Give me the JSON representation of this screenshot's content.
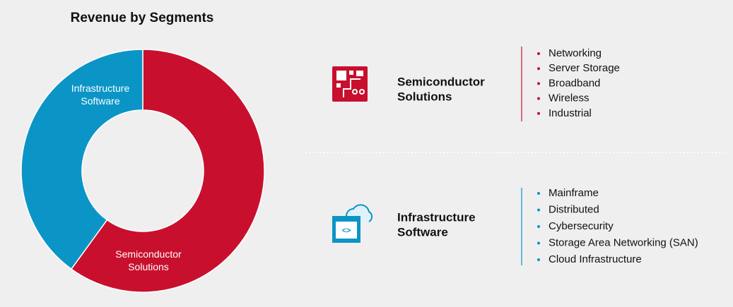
{
  "chart_data": {
    "type": "donut",
    "title": "Revenue by Segments",
    "categories": [
      "Semiconductor Solutions",
      "Infrastructure Software"
    ],
    "values": [
      60,
      40
    ],
    "colors": [
      "#c8102e",
      "#0b95c6"
    ]
  },
  "segments": [
    {
      "name": "Semiconductor Solutions",
      "color": "#c8102e",
      "items": [
        "Networking",
        "Server Storage",
        "Broadband",
        "Wireless",
        "Industrial"
      ]
    },
    {
      "name": "Infrastructure Software",
      "color": "#0b95c6",
      "items": [
        "Mainframe",
        "Distributed",
        "Cybersecurity",
        "Storage Area Networking (SAN)",
        "Cloud Infrastructure"
      ]
    }
  ]
}
